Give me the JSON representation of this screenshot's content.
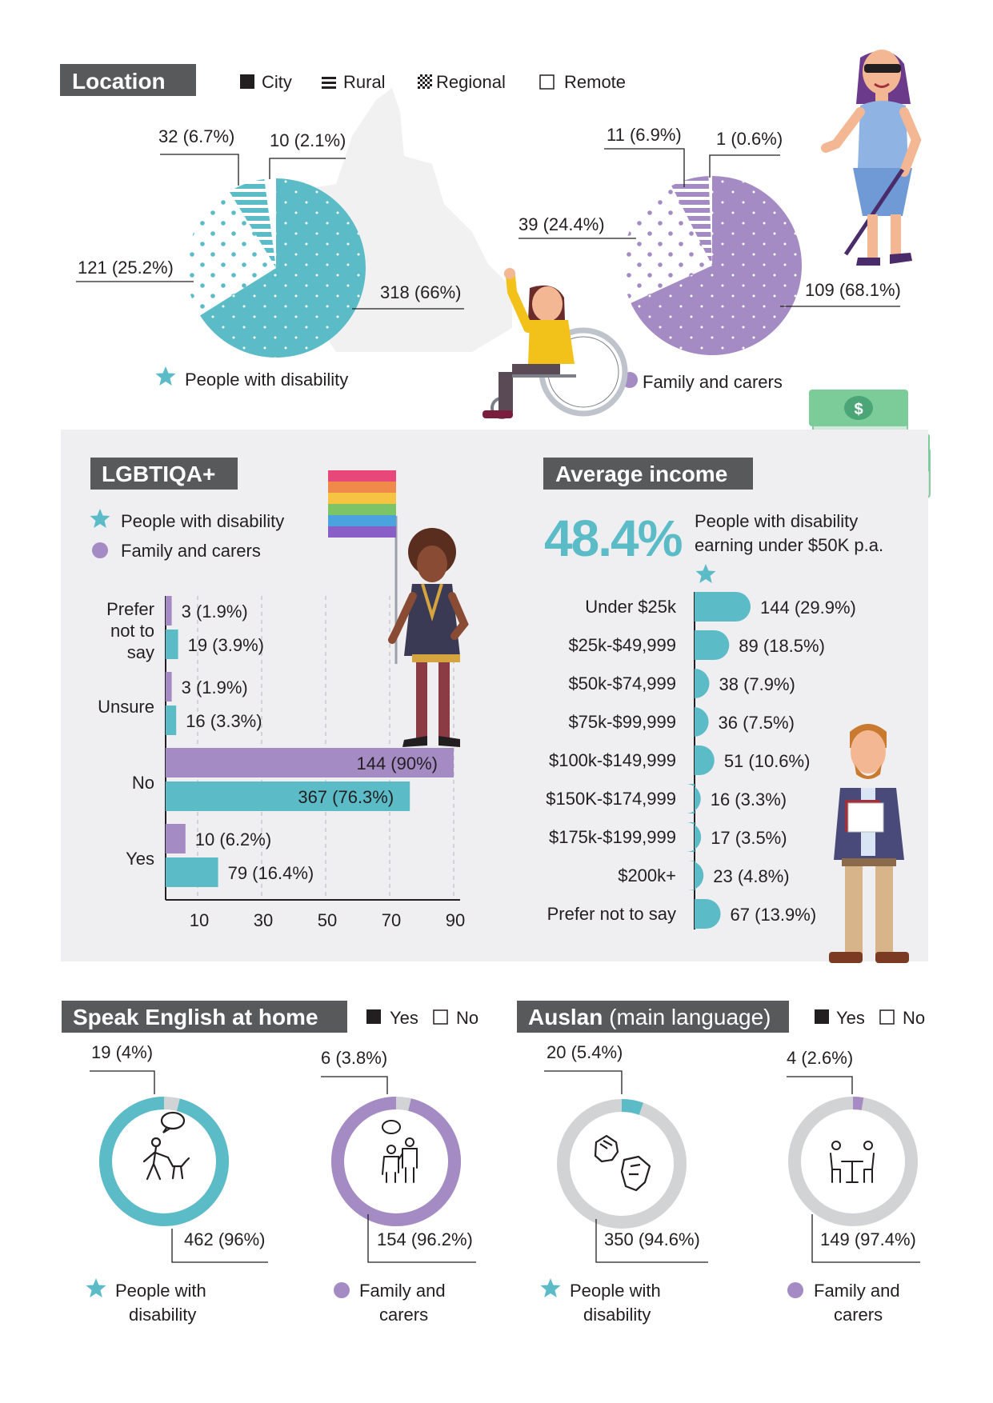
{
  "colors": {
    "teal": "#5bbcc8",
    "purple": "#a48bc4",
    "ring_gray": "#d1d3d4",
    "panel_gray": "#efeff1",
    "title_gray": "#58595b"
  },
  "location": {
    "title": "Location",
    "legend": [
      "City",
      "Rural",
      "Regional",
      "Remote"
    ],
    "pwd_legend": "People with disability",
    "fc_legend": "Family and carers"
  },
  "lgbtiqa": {
    "title": "LGBTIQA+",
    "legend_pwd": "People with disability",
    "legend_fc": "Family and carers"
  },
  "income": {
    "title": "Average income",
    "headline_value": "48.4%",
    "headline_text": [
      "People with disability",
      "earning under $50K p.a."
    ]
  },
  "english": {
    "title": "Speak English at home",
    "legend_yes": "Yes",
    "legend_no": "No",
    "pwd_caption": [
      "People with",
      "disability"
    ],
    "fc_caption": [
      "Family and",
      "carers"
    ]
  },
  "auslan": {
    "title_bold": "Auslan",
    "title_rest": "(main language)",
    "legend_yes": "Yes",
    "legend_no": "No",
    "pwd_caption": [
      "People with",
      "disability"
    ],
    "fc_caption": [
      "Family and",
      "carers"
    ]
  },
  "chart_data": [
    {
      "type": "pie",
      "title": "Location - People with disability",
      "categories": [
        "City",
        "Regional",
        "Rural",
        "Remote"
      ],
      "values": [
        318,
        121,
        32,
        10
      ],
      "labels": [
        "318 (66%)",
        "121 (25.2%)",
        "32 (6.7%)",
        "10 (2.1%)"
      ]
    },
    {
      "type": "pie",
      "title": "Location - Family and carers",
      "categories": [
        "City",
        "Regional",
        "Rural",
        "Remote"
      ],
      "values": [
        109,
        39,
        11,
        1
      ],
      "labels": [
        "109 (68.1%)",
        "39 (24.4%)",
        "11 (6.9%)",
        "1 (0.6%)"
      ]
    },
    {
      "type": "bar",
      "title": "LGBTIQA+",
      "orientation": "horizontal",
      "categories": [
        "Prefer not to say",
        "Unsure",
        "No",
        "Yes"
      ],
      "category_lines": [
        [
          "Prefer",
          "not to",
          "say"
        ],
        [
          "Unsure"
        ],
        [
          "No"
        ],
        [
          "Yes"
        ]
      ],
      "series": [
        {
          "name": "Family and carers",
          "values": [
            1.9,
            1.9,
            90,
            6.2
          ],
          "labels": [
            "3 (1.9%)",
            "3 (1.9%)",
            "144 (90%)",
            "10 (6.2%)"
          ]
        },
        {
          "name": "People with disability",
          "values": [
            3.9,
            3.3,
            76.3,
            16.4
          ],
          "labels": [
            "19 (3.9%)",
            "16 (3.3%)",
            "367 (76.3%)",
            "79 (16.4%)"
          ]
        }
      ],
      "xticks": [
        "10",
        "30",
        "50",
        "70",
        "90"
      ],
      "xlim": [
        0,
        90
      ]
    },
    {
      "type": "bar",
      "title": "Average income",
      "orientation": "horizontal",
      "categories": [
        "Under $25k",
        "$25k-$49,999",
        "$50k-$74,999",
        "$75k-$99,999",
        "$100k-$149,999",
        "$150K-$174,999",
        "$175k-$199,999",
        "$200k+",
        "Prefer not to say"
      ],
      "values": [
        29.9,
        18.5,
        7.9,
        7.5,
        10.6,
        3.3,
        3.5,
        4.8,
        13.9
      ],
      "labels": [
        "144 (29.9%)",
        "89 (18.5%)",
        "38 (7.9%)",
        "36 (7.5%)",
        "51 (10.6%)",
        "16 (3.3%)",
        "17 (3.5%)",
        "23 (4.8%)",
        "67 (13.9%)"
      ]
    },
    {
      "type": "pie",
      "title": "Speak English at home - People with disability",
      "categories": [
        "Yes",
        "No"
      ],
      "values": [
        462,
        19
      ],
      "labels": [
        "462 (96%)",
        "19 (4%)"
      ]
    },
    {
      "type": "pie",
      "title": "Speak English at home - Family and carers",
      "categories": [
        "Yes",
        "No"
      ],
      "values": [
        154,
        6
      ],
      "labels": [
        "154 (96.2%)",
        "6 (3.8%)"
      ]
    },
    {
      "type": "pie",
      "title": "Auslan (main language) - People with disability",
      "categories": [
        "Yes",
        "No"
      ],
      "values": [
        20,
        350
      ],
      "labels": [
        "20 (5.4%)",
        "350 (94.6%)"
      ]
    },
    {
      "type": "pie",
      "title": "Auslan (main language) - Family and carers",
      "categories": [
        "Yes",
        "No"
      ],
      "values": [
        4,
        149
      ],
      "labels": [
        "4 (2.6%)",
        "149 (97.4%)"
      ]
    }
  ]
}
